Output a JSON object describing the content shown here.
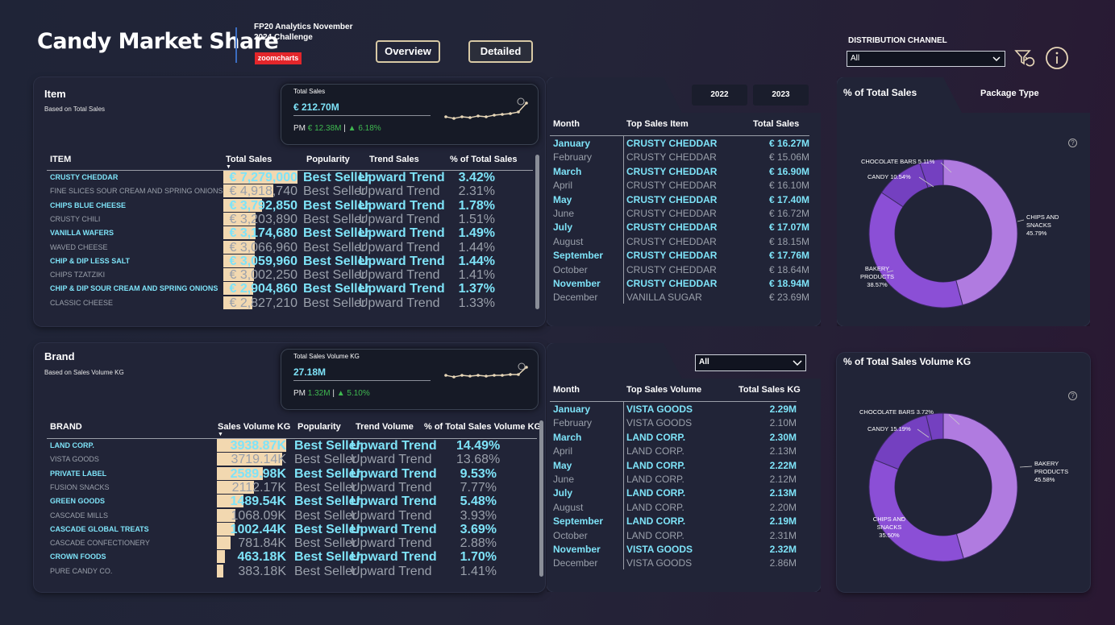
{
  "header": {
    "title": "Candy Market Share",
    "challenge": "FP20 Analytics November 2024 Challenge",
    "logo_text": "zoomcharts",
    "nav": [
      "Overview",
      "Detailed"
    ]
  },
  "filters": {
    "distribution_label": "DISTRIBUTION CHANNEL",
    "distribution_value": "All"
  },
  "item_panel": {
    "title": "Item",
    "subtitle": "Based on Total Sales",
    "kpi": {
      "label": "Total Sales",
      "value": "€ 212.70M",
      "pm_label": "PM",
      "pm_value": "€ 12.38M",
      "change": "▲ 6.18%"
    },
    "columns": [
      "ITEM",
      "Total Sales",
      "Popularity",
      "Trend Sales",
      "% of Total Sales"
    ],
    "rows": [
      {
        "name": "CRUSTY CHEDDAR",
        "value": "€ 7,279,000",
        "pop": "Best Seller",
        "trend": "Upward Trend",
        "pct": "3.42%",
        "frac": 1.0
      },
      {
        "name": "FINE SLICES SOUR CREAM AND SPRING ONIONS",
        "value": "€ 4,918,740",
        "pop": "Best Seller",
        "trend": "Upward Trend",
        "pct": "2.31%",
        "frac": 0.676
      },
      {
        "name": "CHIPS BLUE CHEESE",
        "value": "€ 3,792,850",
        "pop": "Best Seller",
        "trend": "Upward Trend",
        "pct": "1.78%",
        "frac": 0.521
      },
      {
        "name": "CRUSTY CHILI",
        "value": "€ 3,203,890",
        "pop": "Best Seller",
        "trend": "Upward Trend",
        "pct": "1.51%",
        "frac": 0.44
      },
      {
        "name": "VANILLA WAFERS",
        "value": "€ 3,174,680",
        "pop": "Best Seller",
        "trend": "Upward Trend",
        "pct": "1.49%",
        "frac": 0.436
      },
      {
        "name": "WAVED CHEESE",
        "value": "€ 3,066,960",
        "pop": "Best Seller",
        "trend": "Upward Trend",
        "pct": "1.44%",
        "frac": 0.421
      },
      {
        "name": "CHIP & DIP LESS SALT",
        "value": "€ 3,059,960",
        "pop": "Best Seller",
        "trend": "Upward Trend",
        "pct": "1.44%",
        "frac": 0.42
      },
      {
        "name": "CHIPS TZATZIKI",
        "value": "€ 3,002,250",
        "pop": "Best Seller",
        "trend": "Upward Trend",
        "pct": "1.41%",
        "frac": 0.412
      },
      {
        "name": "CHIP & DIP SOUR CREAM AND SPRING ONIONS",
        "value": "€ 2,904,860",
        "pop": "Best Seller",
        "trend": "Upward Trend",
        "pct": "1.37%",
        "frac": 0.399
      },
      {
        "name": "CLASSIC CHEESE",
        "value": "€ 2,827,210",
        "pop": "Best Seller",
        "trend": "Upward Trend",
        "pct": "1.33%",
        "frac": 0.388
      }
    ]
  },
  "year_tabs": [
    "2022",
    "2023"
  ],
  "month_sales": {
    "columns": [
      "Month",
      "Top Sales Item",
      "Total Sales"
    ],
    "rows": [
      {
        "month": "January",
        "item": "CRUSTY CHEDDAR",
        "value": "€ 16.27M"
      },
      {
        "month": "February",
        "item": "CRUSTY CHEDDAR",
        "value": "€ 15.06M"
      },
      {
        "month": "March",
        "item": "CRUSTY CHEDDAR",
        "value": "€ 16.90M"
      },
      {
        "month": "April",
        "item": "CRUSTY CHEDDAR",
        "value": "€ 16.10M"
      },
      {
        "month": "May",
        "item": "CRUSTY CHEDDAR",
        "value": "€ 17.40M"
      },
      {
        "month": "June",
        "item": "CRUSTY CHEDDAR",
        "value": "€ 16.72M"
      },
      {
        "month": "July",
        "item": "CRUSTY CHEDDAR",
        "value": "€ 17.07M"
      },
      {
        "month": "August",
        "item": "CRUSTY CHEDDAR",
        "value": "€ 18.15M"
      },
      {
        "month": "September",
        "item": "CRUSTY CHEDDAR",
        "value": "€ 17.76M"
      },
      {
        "month": "October",
        "item": "CRUSTY CHEDDAR",
        "value": "€ 18.64M"
      },
      {
        "month": "November",
        "item": "CRUSTY CHEDDAR",
        "value": "€ 18.94M"
      },
      {
        "month": "December",
        "item": "VANILLA SUGAR",
        "value": "€ 23.69M"
      }
    ]
  },
  "brand_panel": {
    "title": "Brand",
    "subtitle": "Based on Sales Volume KG",
    "kpi": {
      "label": "Total Sales Volume KG",
      "value": "27.18M",
      "pm_label": "PM",
      "pm_value": "1.32M",
      "change": "▲ 5.10%"
    },
    "columns": [
      "BRAND",
      "Sales Volume KG",
      "Popularity",
      "Trend Volume",
      "% of Total Sales Volume KG"
    ],
    "rows": [
      {
        "name": "LAND CORP.",
        "value": "3938.87K",
        "pop": "Best Seller",
        "trend": "Upward Trend",
        "pct": "14.49%",
        "frac": 1.0
      },
      {
        "name": "VISTA GOODS",
        "value": "3719.14K",
        "pop": "Best Seller",
        "trend": "Upward Trend",
        "pct": "13.68%",
        "frac": 0.944
      },
      {
        "name": "PRIVATE LABEL",
        "value": "2589.98K",
        "pop": "Best Seller",
        "trend": "Upward Trend",
        "pct": "9.53%",
        "frac": 0.658
      },
      {
        "name": "FUSION SNACKS",
        "value": "2112.17K",
        "pop": "Best Seller",
        "trend": "Upward Trend",
        "pct": "7.77%",
        "frac": 0.536
      },
      {
        "name": "GREEN GOODS",
        "value": "1489.54K",
        "pop": "Best Seller",
        "trend": "Upward Trend",
        "pct": "5.48%",
        "frac": 0.378
      },
      {
        "name": "CASCADE MILLS",
        "value": "1068.09K",
        "pop": "Best Seller",
        "trend": "Upward Trend",
        "pct": "3.93%",
        "frac": 0.271
      },
      {
        "name": "CASCADE GLOBAL TREATS",
        "value": "1002.44K",
        "pop": "Best Seller",
        "trend": "Upward Trend",
        "pct": "3.69%",
        "frac": 0.254
      },
      {
        "name": "CASCADE CONFECTIONERY",
        "value": "781.84K",
        "pop": "Best Seller",
        "trend": "Upward Trend",
        "pct": "2.88%",
        "frac": 0.198
      },
      {
        "name": "CROWN FOODS",
        "value": "463.18K",
        "pop": "Best Seller",
        "trend": "Upward Trend",
        "pct": "1.70%",
        "frac": 0.118
      },
      {
        "name": "PURE CANDY CO.",
        "value": "383.18K",
        "pop": "Best Seller",
        "trend": "Upward Trend",
        "pct": "1.41%",
        "frac": 0.097
      }
    ]
  },
  "volume_filter": "All",
  "month_volume": {
    "columns": [
      "Month",
      "Top Sales Volume",
      "Total Sales KG"
    ],
    "rows": [
      {
        "month": "January",
        "item": "VISTA GOODS",
        "value": "2.29M"
      },
      {
        "month": "February",
        "item": "VISTA GOODS",
        "value": "2.10M"
      },
      {
        "month": "March",
        "item": "LAND CORP.",
        "value": "2.30M"
      },
      {
        "month": "April",
        "item": "LAND CORP.",
        "value": "2.13M"
      },
      {
        "month": "May",
        "item": "LAND CORP.",
        "value": "2.22M"
      },
      {
        "month": "June",
        "item": "LAND CORP.",
        "value": "2.12M"
      },
      {
        "month": "July",
        "item": "LAND CORP.",
        "value": "2.13M"
      },
      {
        "month": "August",
        "item": "LAND CORP.",
        "value": "2.20M"
      },
      {
        "month": "September",
        "item": "LAND CORP.",
        "value": "2.19M"
      },
      {
        "month": "October",
        "item": "LAND CORP.",
        "value": "2.31M"
      },
      {
        "month": "November",
        "item": "VISTA GOODS",
        "value": "2.32M"
      },
      {
        "month": "December",
        "item": "VISTA GOODS",
        "value": "2.86M"
      }
    ]
  },
  "donut_tabs": [
    "% of Total Sales",
    "Package Type"
  ],
  "donut_volume_title": "% of Total Sales Volume KG",
  "colors": {
    "accent": "#7ee3f8",
    "bar": "#f2d8b0",
    "positive": "#3fb950",
    "donut_light": "#b07be0",
    "donut_dark": "#7a3fc7"
  },
  "chart_data": [
    {
      "type": "pie",
      "title": "% of Total Sales",
      "categories": [
        "CHIPS AND SNACKS",
        "BAKERY PRODUCTS",
        "CANDY",
        "CHOCOLATE BARS"
      ],
      "values": [
        45.79,
        38.57,
        10.54,
        5.11
      ],
      "labels": [
        "45.79%",
        "38.57%",
        "10.54%",
        "5.11%"
      ]
    },
    {
      "type": "pie",
      "title": "% of Total Sales Volume KG",
      "categories": [
        "BAKERY PRODUCTS",
        "CHIPS AND SNACKS",
        "CANDY",
        "CHOCOLATE BARS"
      ],
      "values": [
        45.58,
        35.5,
        15.19,
        3.72
      ],
      "labels": [
        "45.58%",
        "35.50%",
        "15.19%",
        "3.72%"
      ]
    }
  ]
}
